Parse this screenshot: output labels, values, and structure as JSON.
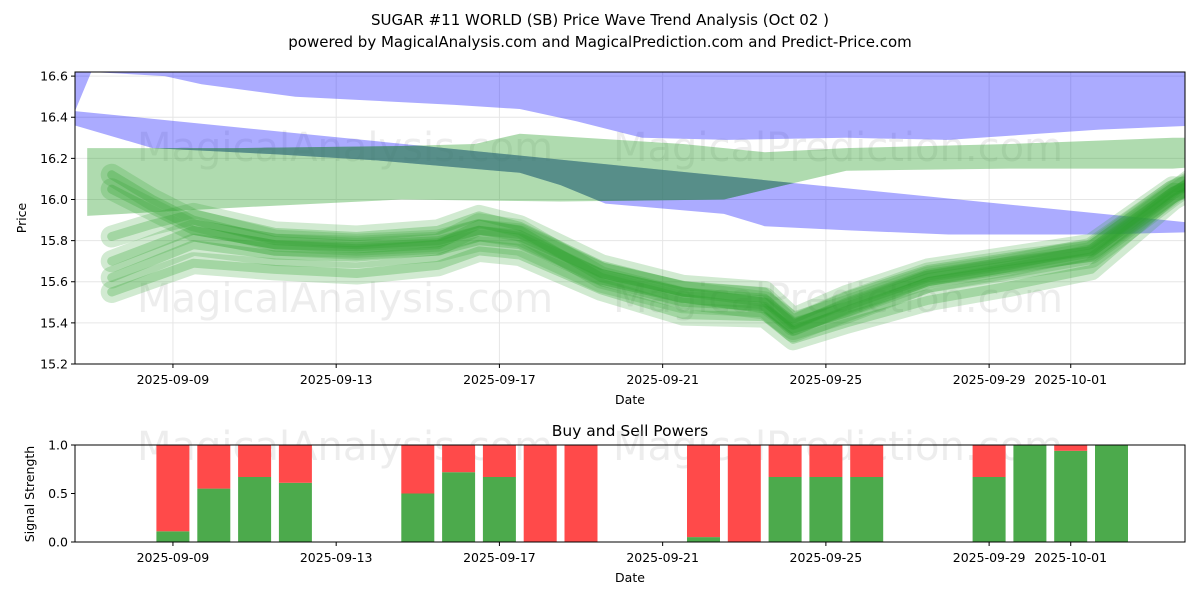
{
  "colors": {
    "upper_band": "#0000ff",
    "lower_band": "#2ca02c",
    "buy": "#4caa4c",
    "sell": "#ff4a4a",
    "grid": "#e6e6e6"
  },
  "watermarks": [
    "MagicalAnalysis.com",
    "MagicalPrediction.com"
  ],
  "chart_data": [
    {
      "type": "area",
      "title": "SUGAR #11 WORLD (SB) Price Wave Trend Analysis (Oct 02 )",
      "subtitle": "powered by MagicalAnalysis.com and MagicalPrediction.com and Predict-Price.com",
      "xlabel": "Date",
      "ylabel": "Price",
      "ylim": [
        15.2,
        16.62
      ],
      "xlim": [
        "2025-09-06.6",
        "2025-10-03.8"
      ],
      "x_ticks": [
        "2025-09-09",
        "2025-09-13",
        "2025-09-17",
        "2025-09-21",
        "2025-09-25",
        "2025-09-29",
        "2025-10-01"
      ],
      "y_ticks": [
        "15.2",
        "15.4",
        "15.6",
        "15.8",
        "16.0",
        "16.2",
        "16.4",
        "16.6"
      ],
      "grid": true,
      "series": [
        {
          "name": "Blue forecast band",
          "band_upper": [
            [
              0,
              16.43
            ],
            [
              0.4,
              16.62
            ],
            [
              2.2,
              16.6
            ],
            [
              3.1,
              16.56
            ],
            [
              5.4,
              16.5
            ],
            [
              9.3,
              16.46
            ],
            [
              10.9,
              16.44
            ],
            [
              12.3,
              16.38
            ],
            [
              13.9,
              16.3
            ],
            [
              16.0,
              16.29
            ],
            [
              18.9,
              16.3
            ],
            [
              21.4,
              16.29
            ],
            [
              25.1,
              16.34
            ],
            [
              27.5,
              16.36
            ],
            [
              29.5,
              16.43
            ]
          ],
          "band_lower": [
            [
              29.5,
              16.62
            ],
            [
              0,
              16.62
            ],
            [
              0,
              16.36
            ],
            [
              1.9,
              16.25
            ],
            [
              4.9,
              16.22
            ],
            [
              7.4,
              16.19
            ],
            [
              10.9,
              16.13
            ],
            [
              11.9,
              16.07
            ],
            [
              13.0,
              15.98
            ],
            [
              15.9,
              15.93
            ],
            [
              16.9,
              15.87
            ],
            [
              18.9,
              15.85
            ],
            [
              21.4,
              15.83
            ],
            [
              25.1,
              15.83
            ],
            [
              29.2,
              15.85
            ]
          ]
        },
        {
          "name": "Green trend band",
          "band_upper": [
            [
              0.3,
              16.25
            ],
            [
              3.9,
              16.25
            ],
            [
              8.0,
              16.26
            ],
            [
              9.8,
              16.27
            ],
            [
              10.9,
              16.32
            ],
            [
              14.9,
              16.27
            ],
            [
              16.9,
              16.23
            ],
            [
              18.9,
              16.25
            ],
            [
              22.9,
              16.27
            ],
            [
              26.9,
              16.3
            ],
            [
              29.5,
              16.3
            ]
          ],
          "band_lower": [
            [
              29.8,
              16.19
            ],
            [
              26.9,
              16.15
            ],
            [
              22.9,
              16.15
            ],
            [
              18.9,
              16.14
            ],
            [
              15.9,
              16.0
            ],
            [
              11.9,
              15.99
            ],
            [
              8.0,
              16.0
            ],
            [
              3.9,
              15.96
            ],
            [
              0.3,
              15.92
            ]
          ]
        }
      ]
    },
    {
      "type": "line",
      "name": "Green wave trends",
      "x_unit": "days since 2025-09-06.6",
      "lines": [
        [
          [
            0.9,
            15.55
          ],
          [
            2.9,
            15.69
          ],
          [
            4.9,
            15.66
          ],
          [
            6.9,
            15.64
          ],
          [
            8.9,
            15.68
          ],
          [
            9.9,
            15.75
          ],
          [
            10.9,
            15.73
          ],
          [
            12.9,
            15.56
          ],
          [
            14.9,
            15.44
          ],
          [
            16.9,
            15.43
          ],
          [
            17.6,
            15.32
          ],
          [
            18.9,
            15.4
          ],
          [
            20.9,
            15.51
          ],
          [
            22.9,
            15.58
          ],
          [
            24.9,
            15.66
          ],
          [
            26.9,
            16.0
          ],
          [
            27.5,
            16.07
          ]
        ],
        [
          [
            0.9,
            15.62
          ],
          [
            2.9,
            15.78
          ],
          [
            4.9,
            15.73
          ],
          [
            6.9,
            15.72
          ],
          [
            8.9,
            15.75
          ],
          [
            9.9,
            15.8
          ],
          [
            10.9,
            15.78
          ],
          [
            12.9,
            15.6
          ],
          [
            14.9,
            15.5
          ],
          [
            16.9,
            15.48
          ],
          [
            17.6,
            15.36
          ],
          [
            18.9,
            15.46
          ],
          [
            20.9,
            15.6
          ],
          [
            22.9,
            15.66
          ],
          [
            24.9,
            15.72
          ],
          [
            26.9,
            16.02
          ],
          [
            27.5,
            16.1
          ]
        ],
        [
          [
            0.9,
            15.7
          ],
          [
            2.9,
            15.85
          ],
          [
            4.9,
            15.78
          ],
          [
            6.9,
            15.77
          ],
          [
            8.9,
            15.79
          ],
          [
            9.9,
            15.85
          ],
          [
            10.9,
            15.82
          ],
          [
            12.9,
            15.64
          ],
          [
            14.9,
            15.55
          ],
          [
            16.9,
            15.52
          ],
          [
            17.6,
            15.39
          ],
          [
            18.9,
            15.5
          ],
          [
            20.9,
            15.64
          ],
          [
            22.9,
            15.7
          ],
          [
            24.9,
            15.75
          ],
          [
            26.9,
            16.04
          ],
          [
            27.5,
            16.1
          ]
        ],
        [
          [
            0.9,
            15.82
          ],
          [
            1.9,
            15.88
          ],
          [
            2.9,
            15.93
          ],
          [
            4.9,
            15.84
          ],
          [
            6.9,
            15.82
          ],
          [
            8.9,
            15.85
          ],
          [
            9.9,
            15.92
          ],
          [
            10.9,
            15.87
          ],
          [
            12.9,
            15.68
          ],
          [
            14.9,
            15.58
          ],
          [
            16.9,
            15.55
          ],
          [
            17.6,
            15.42
          ],
          [
            18.9,
            15.53
          ],
          [
            20.9,
            15.66
          ],
          [
            22.9,
            15.72
          ],
          [
            24.9,
            15.78
          ],
          [
            26.9,
            16.06
          ],
          [
            27.5,
            16.05
          ]
        ],
        [
          [
            0.9,
            16.12
          ],
          [
            1.9,
            16.0
          ],
          [
            2.9,
            15.9
          ],
          [
            4.9,
            15.8
          ],
          [
            6.9,
            15.78
          ],
          [
            8.9,
            15.8
          ],
          [
            9.9,
            15.85
          ],
          [
            10.9,
            15.83
          ],
          [
            12.9,
            15.64
          ],
          [
            14.9,
            15.55
          ],
          [
            16.9,
            15.5
          ],
          [
            17.6,
            15.4
          ],
          [
            18.9,
            15.48
          ],
          [
            20.9,
            15.62
          ],
          [
            22.9,
            15.68
          ],
          [
            24.9,
            15.76
          ],
          [
            26.9,
            16.04
          ],
          [
            27.5,
            16.08
          ]
        ],
        [
          [
            0.9,
            16.05
          ],
          [
            1.9,
            15.95
          ],
          [
            2.9,
            15.85
          ],
          [
            4.9,
            15.78
          ],
          [
            6.9,
            15.76
          ],
          [
            8.9,
            15.78
          ],
          [
            9.9,
            15.88
          ],
          [
            10.9,
            15.85
          ],
          [
            12.9,
            15.62
          ],
          [
            14.9,
            15.52
          ],
          [
            16.9,
            15.47
          ],
          [
            17.6,
            15.37
          ],
          [
            18.9,
            15.45
          ],
          [
            20.9,
            15.6
          ],
          [
            22.9,
            15.67
          ],
          [
            24.9,
            15.74
          ],
          [
            26.9,
            16.03
          ],
          [
            27.5,
            16.12
          ]
        ]
      ]
    },
    {
      "type": "bar",
      "title": "Buy and Sell Powers",
      "xlabel": "Date",
      "ylabel": "Signal Strength",
      "ylim": [
        0,
        1
      ],
      "y_ticks": [
        "0.0",
        "0.5",
        "1.0"
      ],
      "x_ticks": [
        "2025-09-09",
        "2025-09-13",
        "2025-09-17",
        "2025-09-21",
        "2025-09-25",
        "2025-09-29",
        "2025-10-01"
      ],
      "categories": [
        "2025-09-09",
        "2025-09-10",
        "2025-09-11",
        "2025-09-12",
        "2025-09-15",
        "2025-09-16",
        "2025-09-17",
        "2025-09-18",
        "2025-09-19",
        "2025-09-22",
        "2025-09-23",
        "2025-09-24",
        "2025-09-25",
        "2025-09-26",
        "2025-09-29",
        "2025-09-30",
        "2025-10-01",
        "2025-10-02"
      ],
      "series": [
        {
          "name": "Buy",
          "values": [
            0.11,
            0.55,
            0.67,
            0.61,
            0.5,
            0.72,
            0.67,
            0.0,
            0.0,
            0.05,
            0.0,
            0.67,
            0.67,
            0.67,
            0.67,
            1.0,
            0.94,
            1.0
          ]
        },
        {
          "name": "Sell",
          "values": [
            0.89,
            0.45,
            0.33,
            0.39,
            0.5,
            0.28,
            0.33,
            1.0,
            1.0,
            0.95,
            1.0,
            0.33,
            0.33,
            0.33,
            0.33,
            0.0,
            0.06,
            0.0
          ]
        }
      ]
    }
  ]
}
